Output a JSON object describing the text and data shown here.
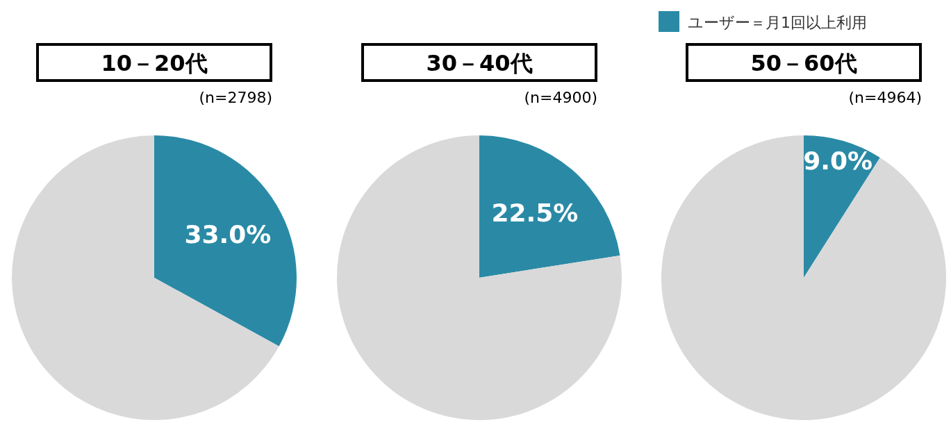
{
  "chart_data": [
    {
      "type": "pie",
      "title": "10－20代",
      "subtitle": "(n=2798)",
      "categories": [
        null,
        null
      ],
      "values": [
        33.0,
        67.0
      ],
      "colors": [
        "#2a8aa6",
        "#d9d9d9"
      ],
      "value_labels": [
        "33.0%",
        null
      ]
    },
    {
      "type": "pie",
      "title": "30－40代",
      "subtitle": "(n=4900)",
      "categories": [
        null,
        null
      ],
      "values": [
        22.5,
        77.5
      ],
      "colors": [
        "#2a8aa6",
        "#d9d9d9"
      ],
      "value_labels": [
        "22.5%",
        null
      ]
    },
    {
      "type": "pie",
      "title": "50－60代",
      "subtitle": "(n=4964)",
      "categories": [
        "ユーザー＝月1回以上利用",
        null
      ],
      "values": [
        9.0,
        91.0
      ],
      "colors": [
        "#2a8aa6",
        "#d9d9d9"
      ],
      "value_labels": [
        "9.0%",
        null
      ],
      "legend": "top"
    }
  ]
}
